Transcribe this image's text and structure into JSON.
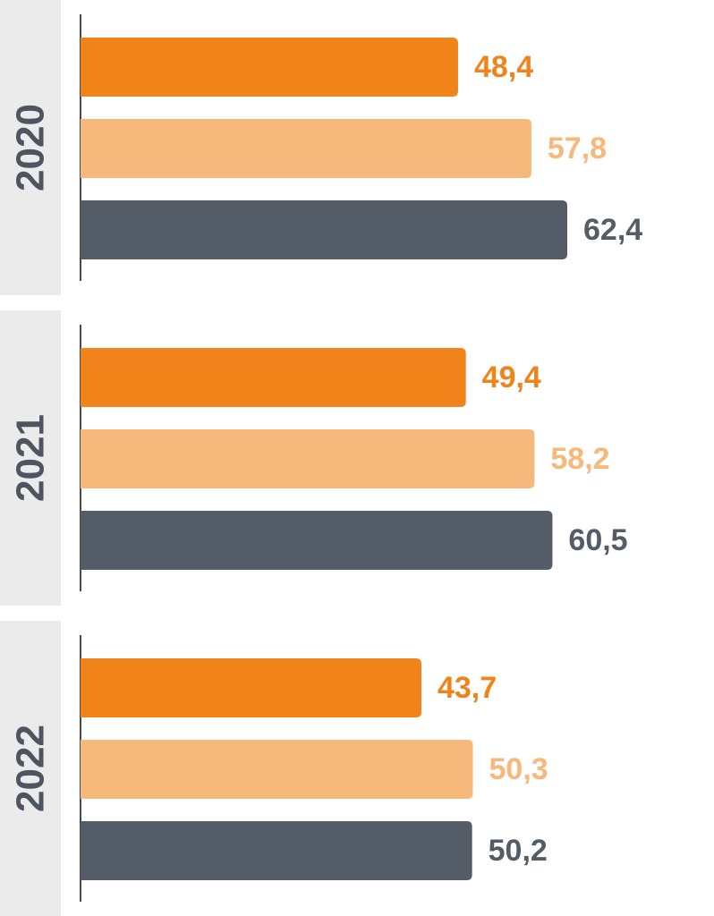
{
  "colors": {
    "series_dark_orange": "#f0841a",
    "series_light_orange": "#f7b87b",
    "series_gray": "#545c68",
    "year_band": "#ebebeb",
    "axis": "#4a4a4a",
    "year_text": "#4d5560"
  },
  "chart_data": {
    "type": "bar",
    "orientation": "horizontal",
    "grouped_by": "year",
    "categories": [
      "2020",
      "2021",
      "2022"
    ],
    "series": [
      {
        "values": [
          48.4,
          49.4,
          43.7
        ],
        "labels": [
          "48,4",
          "49,4",
          "43,7"
        ],
        "color": "#f0841a"
      },
      {
        "values": [
          57.8,
          58.2,
          50.3
        ],
        "labels": [
          "57,8",
          "58,2",
          "50,3"
        ],
        "color": "#f7b87b"
      },
      {
        "values": [
          62.4,
          60.5,
          50.2
        ],
        "labels": [
          "62,4",
          "60,5",
          "50,2"
        ],
        "color": "#545c68"
      }
    ],
    "xlim": [
      0,
      62.4
    ],
    "grid": false,
    "legend": "none",
    "title": "",
    "xlabel": "",
    "ylabel": ""
  }
}
